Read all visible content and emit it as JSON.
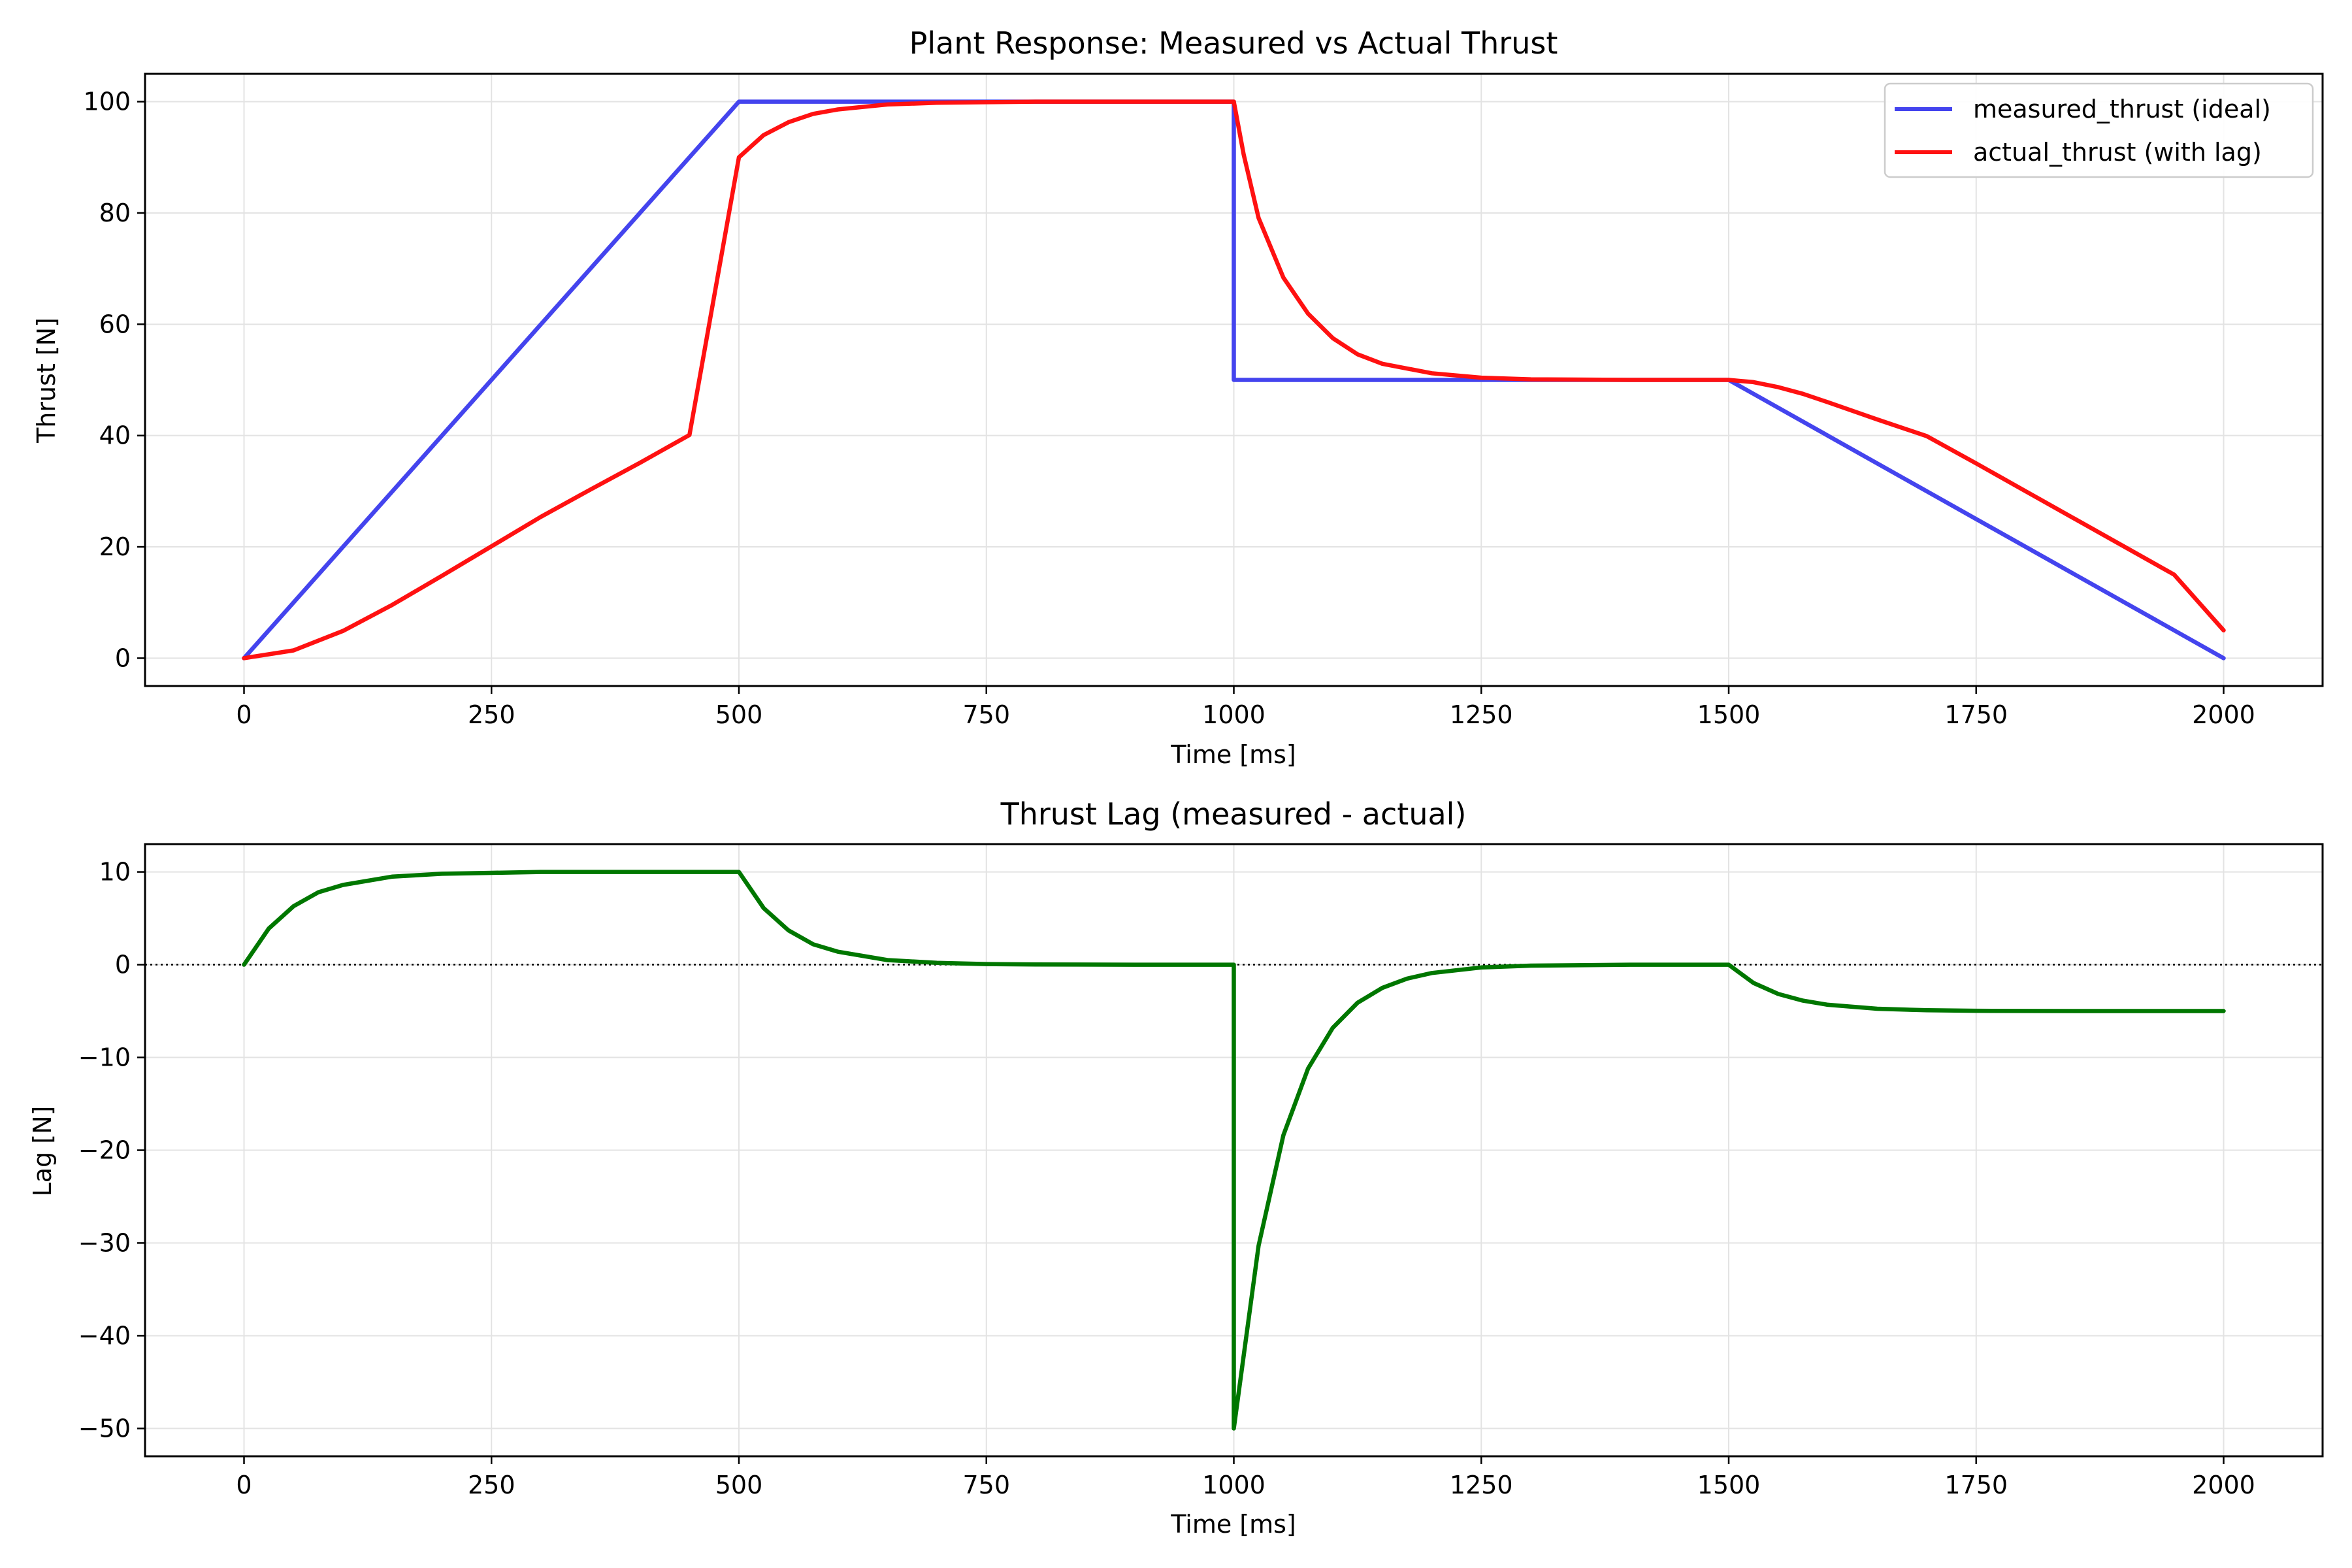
{
  "chart_data": [
    {
      "type": "line",
      "title": "Plant Response: Measured vs Actual Thrust",
      "xlabel": "Time [ms]",
      "ylabel": "Thrust [N]",
      "xlim": [
        -100,
        2100
      ],
      "ylim": [
        -5,
        105
      ],
      "xticks": [
        0,
        250,
        500,
        750,
        1000,
        1250,
        1500,
        1750,
        2000
      ],
      "yticks": [
        0,
        20,
        40,
        60,
        80,
        100
      ],
      "grid": true,
      "legend_position": "top-right",
      "series": [
        {
          "name": "measured_thrust (ideal)",
          "color": "#4444ee",
          "x": [
            0,
            500,
            1000,
            1000,
            1500,
            2000
          ],
          "y": [
            0,
            100,
            100,
            50,
            50,
            0
          ]
        },
        {
          "name": "actual_thrust (with lag)",
          "color": "#ff1111",
          "x": [
            0,
            50,
            100,
            150,
            200,
            250,
            300,
            350,
            400,
            450,
            500,
            525,
            550,
            575,
            600,
            650,
            700,
            750,
            800,
            900,
            1000,
            1010,
            1025,
            1050,
            1075,
            1100,
            1125,
            1150,
            1200,
            1250,
            1300,
            1400,
            1500,
            1525,
            1550,
            1575,
            1600,
            1650,
            1700,
            1750,
            1800,
            1850,
            1900,
            1950,
            2000
          ],
          "y": [
            0,
            1.4,
            4.9,
            9.6,
            14.8,
            20.1,
            25.4,
            30.3,
            35.1,
            40.1,
            90,
            94,
            96.3,
            97.8,
            98.6,
            99.5,
            99.8,
            99.9,
            100,
            100,
            100,
            90.5,
            79.1,
            68.4,
            61.9,
            57.5,
            54.6,
            52.9,
            51.2,
            50.4,
            50.1,
            50.0,
            50.0,
            49.6,
            48.7,
            47.5,
            46.0,
            42.9,
            39.9,
            35.0,
            30.0,
            25.0,
            20.0,
            15.0,
            5.0
          ]
        }
      ]
    },
    {
      "type": "line",
      "title": "Thrust Lag (measured - actual)",
      "xlabel": "Time [ms]",
      "ylabel": "Lag [N]",
      "xlim": [
        -100,
        2100
      ],
      "ylim": [
        -53,
        13
      ],
      "xticks": [
        0,
        250,
        500,
        750,
        1000,
        1250,
        1500,
        1750,
        2000
      ],
      "yticks": [
        10,
        0,
        -10,
        -20,
        -30,
        -40,
        -50
      ],
      "grid": true,
      "reference_line_y": 0,
      "series": [
        {
          "color": "#007700",
          "x": [
            0,
            25,
            50,
            75,
            100,
            150,
            200,
            250,
            300,
            400,
            500,
            525,
            550,
            575,
            600,
            650,
            700,
            750,
            800,
            900,
            1000,
            1000,
            1025,
            1050,
            1075,
            1100,
            1125,
            1150,
            1175,
            1200,
            1250,
            1300,
            1400,
            1500,
            1525,
            1550,
            1575,
            1600,
            1650,
            1700,
            1750,
            1800,
            1900,
            2000
          ],
          "y": [
            0,
            3.9,
            6.3,
            7.8,
            8.6,
            9.5,
            9.8,
            9.9,
            10,
            10,
            10,
            6.1,
            3.7,
            2.2,
            1.4,
            0.5,
            0.2,
            0.07,
            0.02,
            0,
            0,
            -50,
            -30.3,
            -18.4,
            -11.2,
            -6.8,
            -4.1,
            -2.5,
            -1.5,
            -0.9,
            -0.3,
            -0.1,
            0,
            0,
            -1.97,
            -3.16,
            -3.88,
            -4.32,
            -4.75,
            -4.91,
            -4.97,
            -4.99,
            -5.0,
            -5.0
          ]
        }
      ]
    }
  ]
}
